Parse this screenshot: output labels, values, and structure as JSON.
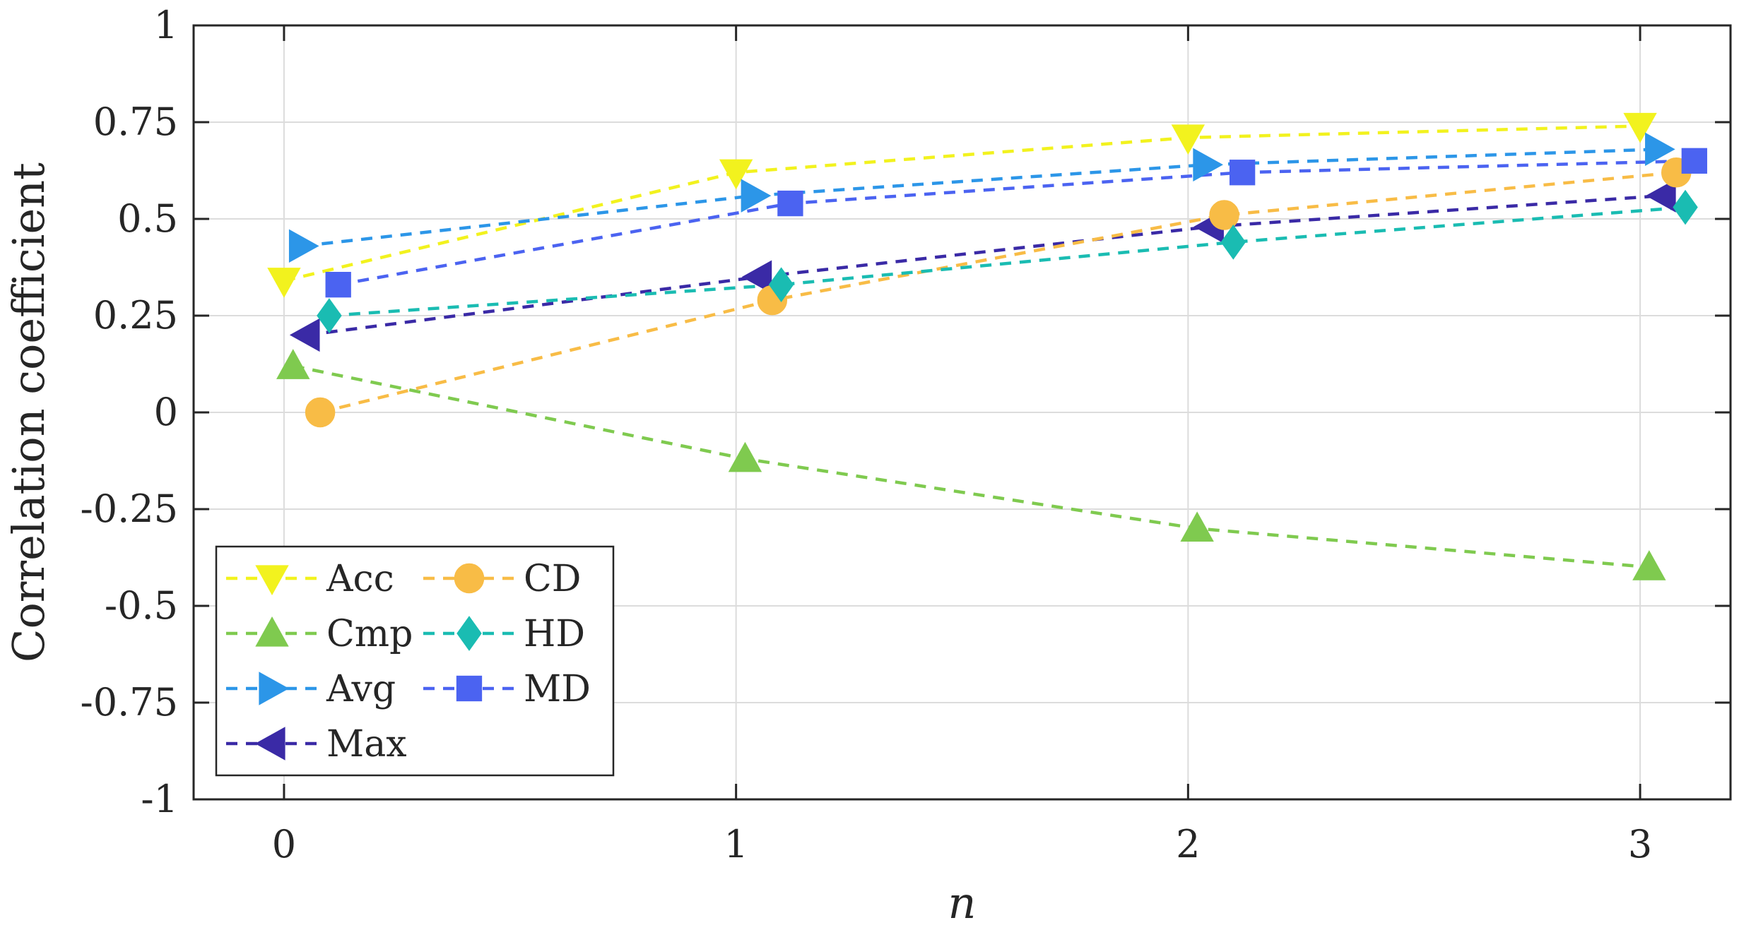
{
  "chart_data": {
    "type": "line",
    "xlabel": "n",
    "ylabel": "Correlation coefficient",
    "xlim": [
      -0.2,
      3.2
    ],
    "ylim": [
      -1,
      1
    ],
    "xticks": [
      0,
      1,
      2,
      3
    ],
    "xtick_labels": [
      "0",
      "1",
      "2",
      "3"
    ],
    "yticks": [
      1,
      0.75,
      0.5,
      0.25,
      0,
      -0.25,
      -0.5,
      -0.75,
      -1
    ],
    "ytick_labels": [
      "1",
      "0.75",
      "0.5",
      "0.25",
      "0",
      "-0.25",
      "-0.5",
      "-0.75",
      "-1"
    ],
    "grid": true,
    "legend_position": "bottom-left",
    "series": [
      {
        "name": "Acc",
        "marker": "triangle-down",
        "color": "#F2F21E",
        "x": [
          0.0,
          1.0,
          2.0,
          3.0
        ],
        "y": [
          0.34,
          0.62,
          0.71,
          0.74
        ]
      },
      {
        "name": "Cmp",
        "marker": "triangle-up",
        "color": "#7FCA4F",
        "x": [
          0.02,
          1.02,
          2.02,
          3.02
        ],
        "y": [
          0.12,
          -0.12,
          -0.3,
          -0.4
        ]
      },
      {
        "name": "Avg",
        "marker": "triangle-right",
        "color": "#2C96E8",
        "x": [
          0.04,
          1.04,
          2.04,
          3.04
        ],
        "y": [
          0.43,
          0.56,
          0.64,
          0.68
        ]
      },
      {
        "name": "Max",
        "marker": "triangle-left",
        "color": "#3A2AA6",
        "x": [
          0.05,
          1.05,
          2.05,
          3.05
        ],
        "y": [
          0.2,
          0.35,
          0.48,
          0.56
        ]
      },
      {
        "name": "CD",
        "marker": "circle",
        "color": "#F8BC46",
        "x": [
          0.08,
          1.08,
          2.08,
          3.08
        ],
        "y": [
          0.0,
          0.29,
          0.51,
          0.62
        ]
      },
      {
        "name": "HD",
        "marker": "diamond",
        "color": "#1ABCB2",
        "x": [
          0.1,
          1.1,
          2.1,
          3.1
        ],
        "y": [
          0.25,
          0.33,
          0.44,
          0.53
        ]
      },
      {
        "name": "MD",
        "marker": "square",
        "color": "#4B63F1",
        "x": [
          0.12,
          1.12,
          2.12,
          3.12
        ],
        "y": [
          0.33,
          0.54,
          0.62,
          0.65
        ]
      }
    ],
    "legend_columns": [
      [
        "Acc",
        "Cmp",
        "Avg",
        "Max"
      ],
      [
        "CD",
        "HD",
        "MD"
      ]
    ]
  }
}
